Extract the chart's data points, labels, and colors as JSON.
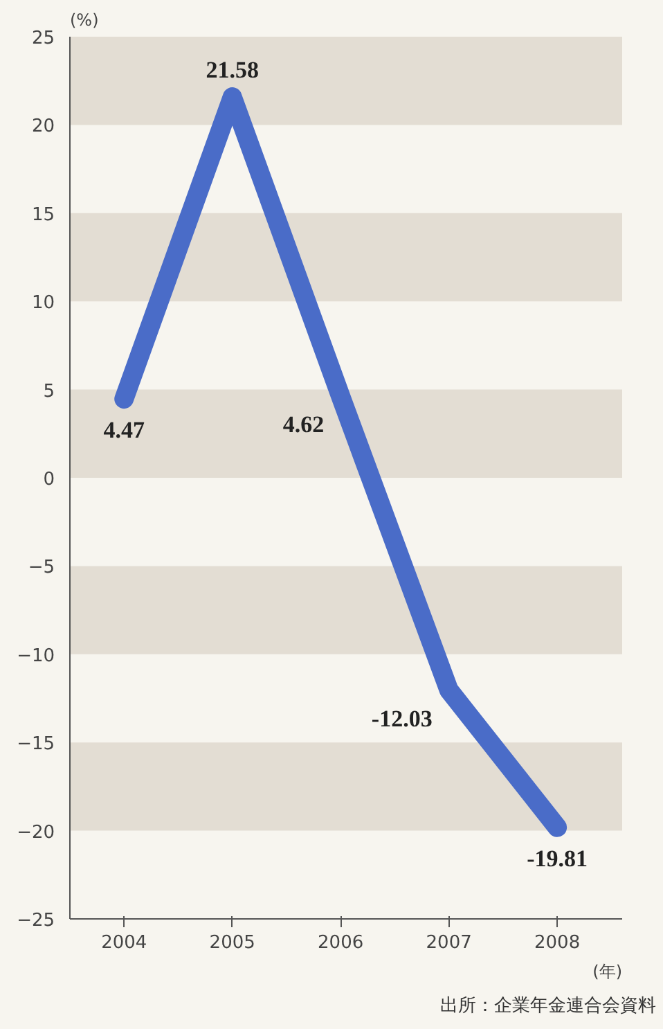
{
  "chart_data": {
    "type": "line",
    "ylabel": "(%)",
    "xlabel": "(年)",
    "categories": [
      "2004",
      "2005",
      "2006",
      "2007",
      "2008"
    ],
    "series": [
      {
        "color": "#4a6cc8",
        "values": [
          4.47,
          21.58,
          4.62,
          -12.03,
          -19.81
        ]
      }
    ],
    "ylim": [
      -25,
      25
    ],
    "yticks": [
      -25,
      -20,
      -15,
      -10,
      -5,
      0,
      5,
      10,
      15,
      20,
      25
    ],
    "bands": [
      {
        "axis": "y",
        "from": 20,
        "to": 25,
        "color": "#e3ddd3"
      },
      {
        "axis": "y",
        "from": 10,
        "to": 15,
        "color": "#e3ddd3"
      },
      {
        "axis": "y",
        "from": 0,
        "to": 5,
        "color": "#e3ddd3"
      },
      {
        "axis": "y",
        "from": -10,
        "to": -5,
        "color": "#e3ddd3"
      },
      {
        "axis": "y",
        "from": -20,
        "to": -15,
        "color": "#e3ddd3"
      }
    ],
    "data_labels": true,
    "grid": false,
    "line_style": "solid",
    "annotations": [
      "出所：企業年金連合会資料"
    ]
  }
}
